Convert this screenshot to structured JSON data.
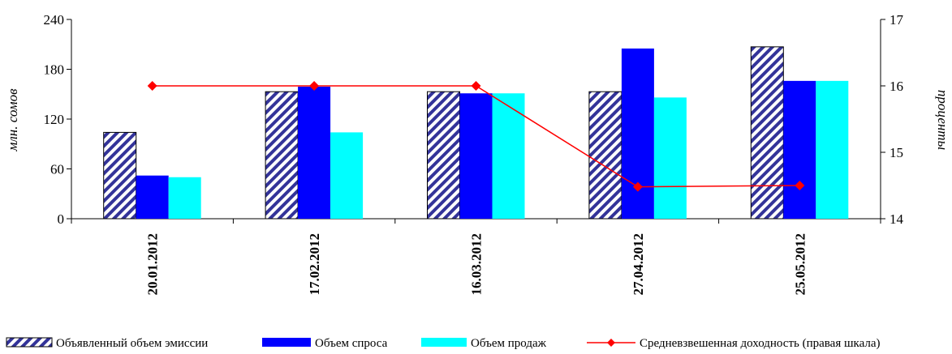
{
  "chart_data": {
    "type": "bar",
    "categories": [
      "20.01.2012",
      "17.02.2012",
      "16.03.2012",
      "27.04.2012",
      "25.05.2012"
    ],
    "series": [
      {
        "name": "Объявленный объем эмиссии",
        "kind": "bar",
        "pattern": "diagonal-hatch",
        "color": "#333399",
        "values": [
          104,
          153,
          153,
          153,
          207
        ]
      },
      {
        "name": "Объем спроса",
        "kind": "bar",
        "color": "#0000FF",
        "values": [
          52,
          159,
          151,
          205,
          166
        ]
      },
      {
        "name": "Объем продаж",
        "kind": "bar",
        "color": "#00FFFF",
        "values": [
          50,
          104,
          151,
          146,
          166
        ]
      },
      {
        "name": "Средневзвешенная доходность (правая шкала)",
        "kind": "line",
        "axis": "right",
        "color": "#FF0000",
        "marker": "diamond",
        "values": [
          16.0,
          16.0,
          16.0,
          14.48,
          14.5
        ]
      }
    ],
    "y_left": {
      "label": "млн. сомов",
      "ylim": [
        0,
        240
      ],
      "ticks": [
        "0",
        "60",
        "120",
        "180",
        "240"
      ]
    },
    "y_right": {
      "label": "проценты",
      "ylim": [
        14,
        17
      ],
      "ticks": [
        "14",
        "15",
        "16",
        "17"
      ]
    },
    "grid": false,
    "legend_position": "bottom"
  }
}
